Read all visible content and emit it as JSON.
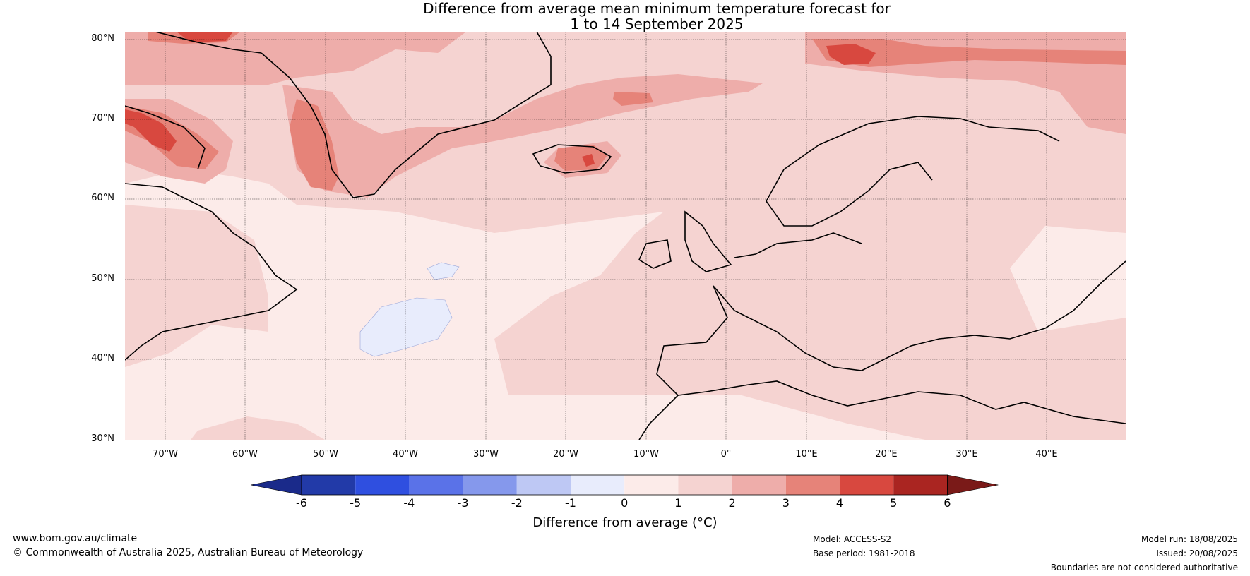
{
  "title": {
    "line1": "Difference from average mean minimum temperature forecast for",
    "line2": "1 to 14 September 2025"
  },
  "map": {
    "lat_labels": [
      "80°N",
      "70°N",
      "60°N",
      "50°N",
      "40°N",
      "30°N"
    ],
    "lon_labels": [
      "70°W",
      "60°W",
      "50°W",
      "40°W",
      "30°W",
      "20°W",
      "10°W",
      "0°",
      "10°E",
      "20°E",
      "30°E",
      "40°E"
    ]
  },
  "colorbar": {
    "ticks": [
      "-6",
      "-5",
      "-4",
      "-3",
      "-2",
      "-1",
      "0",
      "1",
      "2",
      "3",
      "4",
      "5",
      "6"
    ],
    "colors": [
      "#223aa8",
      "#2f4fe0",
      "#5a72e8",
      "#8598ec",
      "#bec8f4",
      "#e8ecfc",
      "#fcebe9",
      "#f5d3d1",
      "#eeadaa",
      "#e68379",
      "#d8483f",
      "#aa2521"
    ],
    "under_color": "#1a2a8a",
    "over_color": "#7a1a18",
    "label": "Difference from average (°C)"
  },
  "footer": {
    "url": "www.bom.gov.au/climate",
    "copyright": "© Commonwealth of Australia 2025, Australian Bureau of Meteorology",
    "model": "Model: ACCESS-S2",
    "base_period": "Base period: 1981-2018",
    "model_run": "Model run: 18/08/2025",
    "issued": "Issued: 20/08/2025",
    "disclaimer": "Boundaries are not considered authoritative"
  }
}
